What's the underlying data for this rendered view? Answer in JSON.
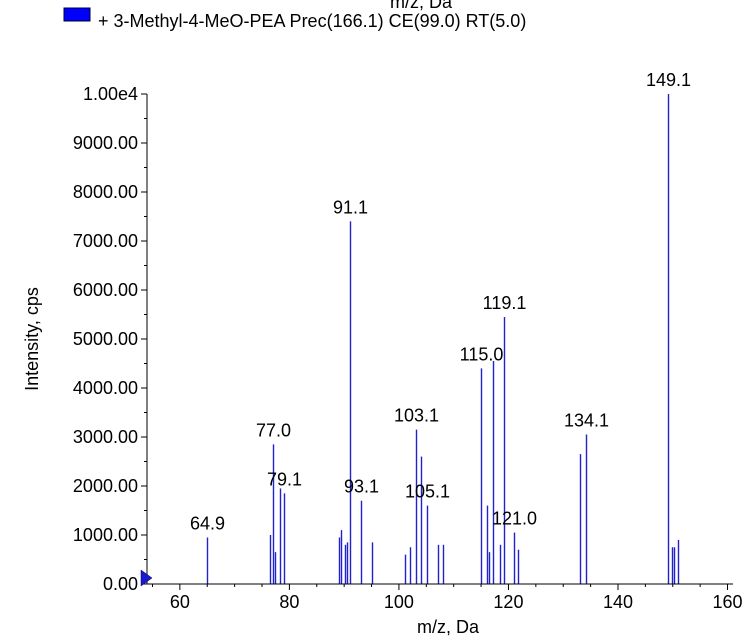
{
  "chart_data": {
    "type": "bar",
    "top_cut_text": "m/z, Da",
    "legend": {
      "label": "+ 3-Methyl-4-MeO-PEA Prec(166.1) CE(99.0) RT(5.0)",
      "color": "#0000ff"
    },
    "xlabel": "m/z, Da",
    "ylabel": "Intensity, cps",
    "xlim": [
      54,
      161
    ],
    "ylim": [
      0,
      10000
    ],
    "x_ticks": [
      60,
      80,
      100,
      120,
      140,
      160
    ],
    "y_ticks": [
      {
        "value": 0,
        "label": "0.00"
      },
      {
        "value": 1000,
        "label": "1000.00"
      },
      {
        "value": 2000,
        "label": "2000.00"
      },
      {
        "value": 3000,
        "label": "3000.00"
      },
      {
        "value": 4000,
        "label": "4000.00"
      },
      {
        "value": 5000,
        "label": "5000.00"
      },
      {
        "value": 6000,
        "label": "6000.00"
      },
      {
        "value": 7000,
        "label": "7000.00"
      },
      {
        "value": 8000,
        "label": "8000.00"
      },
      {
        "value": 9000,
        "label": "9000.00"
      },
      {
        "value": 10000,
        "label": "1.00e4"
      }
    ],
    "line_color": "#2222cc",
    "peaks": [
      {
        "mz": 64.9,
        "intensity": 950,
        "label": "64.9"
      },
      {
        "mz": 76.5,
        "intensity": 1000
      },
      {
        "mz": 77.0,
        "intensity": 2850,
        "label": "77.0"
      },
      {
        "mz": 77.4,
        "intensity": 650
      },
      {
        "mz": 78.3,
        "intensity": 1950
      },
      {
        "mz": 79.1,
        "intensity": 1850,
        "label": "79.1"
      },
      {
        "mz": 89.0,
        "intensity": 950
      },
      {
        "mz": 89.4,
        "intensity": 1100
      },
      {
        "mz": 90.1,
        "intensity": 800
      },
      {
        "mz": 90.5,
        "intensity": 850
      },
      {
        "mz": 91.1,
        "intensity": 7400,
        "label": "91.1"
      },
      {
        "mz": 93.1,
        "intensity": 1700,
        "label": "93.1"
      },
      {
        "mz": 95.0,
        "intensity": 850
      },
      {
        "mz": 101.2,
        "intensity": 600
      },
      {
        "mz": 102.0,
        "intensity": 750
      },
      {
        "mz": 103.1,
        "intensity": 3150,
        "label": "103.1"
      },
      {
        "mz": 104.1,
        "intensity": 2600
      },
      {
        "mz": 105.1,
        "intensity": 1600,
        "label": "105.1"
      },
      {
        "mz": 107.2,
        "intensity": 800
      },
      {
        "mz": 108.0,
        "intensity": 800
      },
      {
        "mz": 115.0,
        "intensity": 4400,
        "label": "115.0"
      },
      {
        "mz": 116.0,
        "intensity": 1600
      },
      {
        "mz": 116.5,
        "intensity": 650
      },
      {
        "mz": 117.1,
        "intensity": 4550
      },
      {
        "mz": 118.4,
        "intensity": 800
      },
      {
        "mz": 119.1,
        "intensity": 5450,
        "label": "119.1"
      },
      {
        "mz": 121.0,
        "intensity": 1050,
        "label": "121.0"
      },
      {
        "mz": 121.8,
        "intensity": 700
      },
      {
        "mz": 133.1,
        "intensity": 2650
      },
      {
        "mz": 134.1,
        "intensity": 3050,
        "label": "134.1"
      },
      {
        "mz": 149.1,
        "intensity": 10000,
        "label": "149.1"
      },
      {
        "mz": 149.8,
        "intensity": 750
      },
      {
        "mz": 150.3,
        "intensity": 750
      },
      {
        "mz": 151.0,
        "intensity": 900
      }
    ]
  }
}
